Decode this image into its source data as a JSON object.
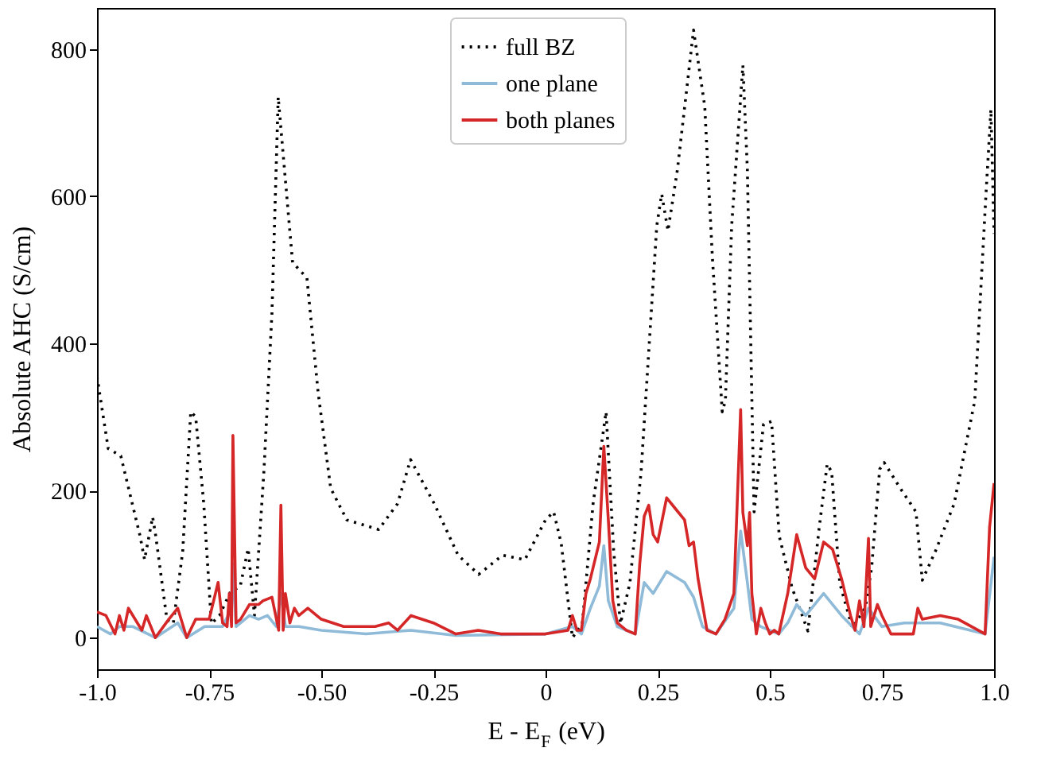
{
  "chart_data": {
    "type": "line",
    "xlabel": "E - E$_{F}$ (eV)",
    "ylabel": "Absolute AHC (S/cm)",
    "xlim": [
      -1.0,
      1.0
    ],
    "ylim": [
      -43,
      856
    ],
    "xticks": [
      {
        "value": -1.0,
        "label": "-1.0"
      },
      -0.75,
      {
        "value": -0.5,
        "label": "-0.50"
      },
      -0.25,
      0,
      0.25,
      0.5,
      0.75,
      {
        "value": 1.0,
        "label": "1.0"
      }
    ],
    "yticks": [
      0,
      200,
      400,
      600,
      800
    ],
    "grid": false,
    "legend": "top",
    "marker": "none",
    "series": [
      {
        "name": "full BZ",
        "color": "#000000",
        "line_style": "dotted",
        "x": [
          -1.0,
          -0.975,
          -0.947,
          -0.904,
          -0.894,
          -0.876,
          -0.869,
          -0.844,
          -0.83,
          -0.809,
          -0.791,
          -0.78,
          -0.762,
          -0.745,
          -0.727,
          -0.702,
          -0.681,
          -0.663,
          -0.649,
          -0.628,
          -0.61,
          -0.596,
          -0.585,
          -0.564,
          -0.532,
          -0.507,
          -0.479,
          -0.443,
          -0.372,
          -0.33,
          -0.301,
          -0.248,
          -0.195,
          -0.149,
          -0.096,
          -0.046,
          0.0,
          0.018,
          0.035,
          0.06,
          0.082,
          0.106,
          0.135,
          0.152,
          0.167,
          0.188,
          0.213,
          0.248,
          0.259,
          0.273,
          0.294,
          0.33,
          0.355,
          0.372,
          0.394,
          0.401,
          0.415,
          0.44,
          0.45,
          0.465,
          0.486,
          0.504,
          0.521,
          0.55,
          0.585,
          0.61,
          0.628,
          0.638,
          0.656,
          0.684,
          0.713,
          0.727,
          0.745,
          0.755,
          0.791,
          0.826,
          0.84,
          0.869,
          0.911,
          0.957,
          0.982,
          0.993,
          1.0
        ],
        "values": [
          355,
          257,
          247,
          138,
          106,
          164,
          138,
          24,
          19,
          117,
          307,
          300,
          182,
          19,
          30,
          63,
          69,
          121,
          30,
          225,
          441,
          735,
          657,
          510,
          489,
          333,
          203,
          160,
          147,
          182,
          242,
          182,
          112,
          86,
          112,
          106,
          160,
          171,
          128,
          0,
          19,
          182,
          307,
          117,
          19,
          74,
          225,
          560,
          603,
          553,
          636,
          826,
          722,
          517,
          307,
          322,
          560,
          778,
          636,
          171,
          290,
          294,
          138,
          67,
          9,
          149,
          236,
          225,
          74,
          13,
          41,
          95,
          229,
          238,
          203,
          171,
          78,
          117,
          182,
          322,
          603,
          718,
          549
        ]
      },
      {
        "name": "one plane",
        "color": "#8fbbd9",
        "line_style": "solid",
        "x": [
          -1.0,
          -0.97,
          -0.95,
          -0.92,
          -0.87,
          -0.82,
          -0.8,
          -0.76,
          -0.72,
          -0.7,
          -0.697,
          -0.69,
          -0.66,
          -0.64,
          -0.62,
          -0.6,
          -0.59,
          -0.58,
          -0.55,
          -0.5,
          -0.4,
          -0.3,
          -0.2,
          0.0,
          0.06,
          0.08,
          0.1,
          0.12,
          0.13,
          0.14,
          0.16,
          0.2,
          0.21,
          0.22,
          0.24,
          0.25,
          0.27,
          0.31,
          0.33,
          0.35,
          0.38,
          0.42,
          0.435,
          0.45,
          0.46,
          0.48,
          0.52,
          0.54,
          0.56,
          0.58,
          0.62,
          0.66,
          0.7,
          0.72,
          0.75,
          0.8,
          0.88,
          0.98,
          1.0
        ],
        "values": [
          15,
          5,
          15,
          15,
          0,
          20,
          0,
          15,
          15,
          40,
          100,
          15,
          30,
          25,
          30,
          15,
          60,
          15,
          15,
          10,
          5,
          10,
          3,
          5,
          15,
          5,
          40,
          70,
          125,
          50,
          15,
          5,
          40,
          75,
          60,
          70,
          90,
          75,
          55,
          15,
          5,
          40,
          145,
          75,
          25,
          15,
          5,
          20,
          45,
          30,
          60,
          30,
          5,
          40,
          15,
          20,
          20,
          5,
          110
        ]
      },
      {
        "name": "both planes",
        "color": "#d62728",
        "line_style": "solid",
        "x": [
          -1.0,
          -0.98,
          -0.96,
          -0.95,
          -0.94,
          -0.93,
          -0.92,
          -0.9,
          -0.89,
          -0.87,
          -0.84,
          -0.82,
          -0.8,
          -0.78,
          -0.75,
          -0.73,
          -0.72,
          -0.71,
          -0.705,
          -0.7,
          -0.697,
          -0.69,
          -0.68,
          -0.66,
          -0.64,
          -0.63,
          -0.61,
          -0.595,
          -0.59,
          -0.585,
          -0.58,
          -0.57,
          -0.56,
          -0.55,
          -0.53,
          -0.5,
          -0.45,
          -0.38,
          -0.35,
          -0.33,
          -0.3,
          -0.25,
          -0.2,
          -0.15,
          -0.1,
          0.0,
          0.05,
          0.06,
          0.07,
          0.08,
          0.09,
          0.1,
          0.12,
          0.13,
          0.14,
          0.15,
          0.16,
          0.18,
          0.2,
          0.21,
          0.22,
          0.23,
          0.24,
          0.25,
          0.27,
          0.29,
          0.31,
          0.32,
          0.33,
          0.34,
          0.36,
          0.38,
          0.4,
          0.42,
          0.435,
          0.44,
          0.45,
          0.455,
          0.46,
          0.47,
          0.48,
          0.49,
          0.5,
          0.51,
          0.52,
          0.54,
          0.56,
          0.58,
          0.6,
          0.62,
          0.64,
          0.66,
          0.68,
          0.69,
          0.7,
          0.71,
          0.72,
          0.725,
          0.74,
          0.75,
          0.77,
          0.79,
          0.82,
          0.83,
          0.84,
          0.88,
          0.92,
          0.98,
          0.99,
          1.0
        ],
        "values": [
          35,
          30,
          5,
          30,
          10,
          40,
          30,
          10,
          30,
          0,
          25,
          40,
          0,
          25,
          25,
          75,
          20,
          15,
          60,
          15,
          275,
          20,
          25,
          45,
          45,
          50,
          55,
          10,
          180,
          10,
          60,
          20,
          40,
          30,
          40,
          25,
          15,
          15,
          20,
          10,
          30,
          20,
          5,
          10,
          5,
          5,
          10,
          30,
          10,
          10,
          60,
          80,
          130,
          260,
          160,
          50,
          20,
          10,
          5,
          100,
          165,
          180,
          140,
          130,
          190,
          175,
          160,
          125,
          130,
          80,
          10,
          5,
          25,
          60,
          310,
          170,
          125,
          170,
          60,
          5,
          40,
          20,
          5,
          10,
          5,
          60,
          140,
          95,
          80,
          130,
          120,
          80,
          30,
          10,
          50,
          15,
          135,
          15,
          45,
          30,
          5,
          5,
          5,
          40,
          25,
          30,
          25,
          5,
          150,
          210
        ]
      }
    ]
  }
}
